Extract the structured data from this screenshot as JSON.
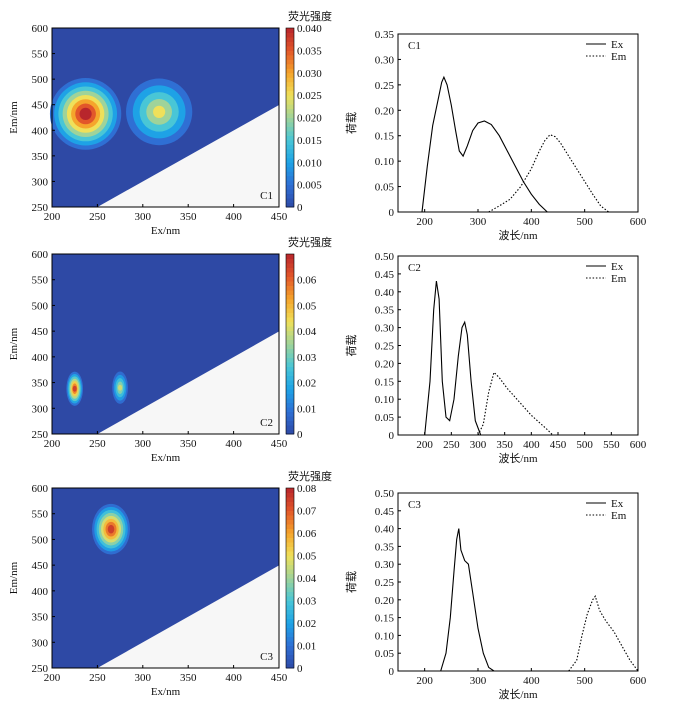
{
  "colorbar_title": "荧光强度",
  "contour_xlabel": "Ex/nm",
  "contour_ylabel": "Em/nm",
  "loading_xlabel": "波长/nm",
  "loading_ylabel": "荷载",
  "colors": {
    "background": "#2e49a5",
    "colormap": [
      "#2e49a5",
      "#2f6fd4",
      "#1ea2e6",
      "#49c6d6",
      "#9fd39a",
      "#efe05a",
      "#f5a52c",
      "#e2572a",
      "#b8262c"
    ],
    "plot_frame": "#000000",
    "masked_region": "#f7f7f7"
  },
  "chart_data": [
    {
      "type": "heatmap",
      "label": "C1",
      "x_range": [
        200,
        450
      ],
      "y_range": [
        250,
        600
      ],
      "x_ticks": [
        200,
        250,
        300,
        350,
        400,
        450
      ],
      "y_ticks": [
        250,
        300,
        350,
        400,
        450,
        500,
        550,
        600
      ],
      "colorbar_max": 0.04,
      "colorbar_ticks": [
        "0",
        "0.005",
        "0.010",
        "0.015",
        "0.020",
        "0.025",
        "0.030",
        "0.035",
        "0.040"
      ],
      "peaks": [
        {
          "ex": 237,
          "em": 432,
          "intensity": 0.04
        },
        {
          "ex": 318,
          "em": 436,
          "intensity": 0.025
        }
      ]
    },
    {
      "type": "line",
      "label": "C1",
      "x_range": [
        150,
        600
      ],
      "y_range": [
        0,
        0.35
      ],
      "x_ticks": [
        200,
        300,
        400,
        500,
        600
      ],
      "y_ticks": [
        "0",
        "0.05",
        "0.10",
        "0.15",
        "0.20",
        "0.25",
        "0.30",
        "0.35"
      ],
      "legend_position": "top-right",
      "series": [
        {
          "name": "Ex",
          "style": "solid",
          "points": [
            [
              195,
              0
            ],
            [
              205,
              0.09
            ],
            [
              215,
              0.17
            ],
            [
              225,
              0.22
            ],
            [
              232,
              0.255
            ],
            [
              236,
              0.265
            ],
            [
              242,
              0.25
            ],
            [
              250,
              0.21
            ],
            [
              258,
              0.16
            ],
            [
              265,
              0.12
            ],
            [
              272,
              0.11
            ],
            [
              280,
              0.13
            ],
            [
              290,
              0.16
            ],
            [
              300,
              0.175
            ],
            [
              312,
              0.179
            ],
            [
              325,
              0.172
            ],
            [
              340,
              0.15
            ],
            [
              355,
              0.12
            ],
            [
              370,
              0.09
            ],
            [
              385,
              0.06
            ],
            [
              400,
              0.035
            ],
            [
              415,
              0.015
            ],
            [
              430,
              0
            ]
          ]
        },
        {
          "name": "Em",
          "style": "dotted",
          "points": [
            [
              320,
              0
            ],
            [
              340,
              0.012
            ],
            [
              360,
              0.025
            ],
            [
              380,
              0.05
            ],
            [
              400,
              0.085
            ],
            [
              415,
              0.12
            ],
            [
              425,
              0.14
            ],
            [
              435,
              0.152
            ],
            [
              445,
              0.148
            ],
            [
              455,
              0.135
            ],
            [
              470,
              0.11
            ],
            [
              485,
              0.085
            ],
            [
              500,
              0.06
            ],
            [
              515,
              0.035
            ],
            [
              530,
              0.012
            ],
            [
              545,
              0
            ]
          ]
        }
      ]
    },
    {
      "type": "heatmap",
      "label": "C2",
      "x_range": [
        200,
        450
      ],
      "y_range": [
        250,
        600
      ],
      "x_ticks": [
        200,
        250,
        300,
        350,
        400,
        450
      ],
      "y_ticks": [
        250,
        300,
        350,
        400,
        450,
        500,
        550,
        600
      ],
      "colorbar_max": 0.07,
      "colorbar_ticks": [
        "0",
        "0.01",
        "0.02",
        "0.03",
        "0.04",
        "0.05",
        "0.06"
      ],
      "peaks": [
        {
          "ex": 225,
          "em": 338,
          "intensity": 0.065
        },
        {
          "ex": 275,
          "em": 340,
          "intensity": 0.04
        }
      ]
    },
    {
      "type": "line",
      "label": "C2",
      "x_range": [
        150,
        600
      ],
      "y_range": [
        0,
        0.5
      ],
      "x_ticks": [
        200,
        250,
        300,
        350,
        400,
        450,
        500,
        550,
        600
      ],
      "y_ticks": [
        "0",
        "0.05",
        "0.10",
        "0.15",
        "0.20",
        "0.25",
        "0.30",
        "0.35",
        "0.40",
        "0.45",
        "0.50"
      ],
      "legend_position": "top-right",
      "series": [
        {
          "name": "Ex",
          "style": "solid",
          "points": [
            [
              200,
              0
            ],
            [
              210,
              0.15
            ],
            [
              217,
              0.35
            ],
            [
              222,
              0.43
            ],
            [
              227,
              0.38
            ],
            [
              233,
              0.15
            ],
            [
              240,
              0.05
            ],
            [
              247,
              0.04
            ],
            [
              255,
              0.1
            ],
            [
              263,
              0.22
            ],
            [
              270,
              0.3
            ],
            [
              275,
              0.315
            ],
            [
              280,
              0.28
            ],
            [
              287,
              0.15
            ],
            [
              295,
              0.04
            ],
            [
              305,
              0
            ]
          ]
        },
        {
          "name": "Em",
          "style": "dotted",
          "points": [
            [
              300,
              0
            ],
            [
              310,
              0.03
            ],
            [
              320,
              0.12
            ],
            [
              330,
              0.175
            ],
            [
              340,
              0.16
            ],
            [
              355,
              0.13
            ],
            [
              370,
              0.105
            ],
            [
              385,
              0.08
            ],
            [
              400,
              0.055
            ],
            [
              415,
              0.035
            ],
            [
              430,
              0.015
            ],
            [
              440,
              0
            ]
          ]
        }
      ]
    },
    {
      "type": "heatmap",
      "label": "C3",
      "x_range": [
        200,
        450
      ],
      "y_range": [
        250,
        600
      ],
      "x_ticks": [
        200,
        250,
        300,
        350,
        400,
        450
      ],
      "y_ticks": [
        250,
        300,
        350,
        400,
        450,
        500,
        550,
        600
      ],
      "colorbar_max": 0.08,
      "colorbar_ticks": [
        "0",
        "0.01",
        "0.02",
        "0.03",
        "0.04",
        "0.05",
        "0.06",
        "0.07",
        "0.08"
      ],
      "peaks": [
        {
          "ex": 265,
          "em": 520,
          "intensity": 0.075
        }
      ]
    },
    {
      "type": "line",
      "label": "C3",
      "x_range": [
        150,
        600
      ],
      "y_range": [
        0,
        0.5
      ],
      "x_ticks": [
        200,
        300,
        400,
        500,
        600
      ],
      "y_ticks": [
        "0",
        "0.05",
        "0.10",
        "0.15",
        "0.20",
        "0.25",
        "0.30",
        "0.35",
        "0.40",
        "0.45",
        "0.50"
      ],
      "legend_position": "top-right",
      "series": [
        {
          "name": "Ex",
          "style": "solid",
          "points": [
            [
              230,
              0
            ],
            [
              240,
              0.05
            ],
            [
              248,
              0.15
            ],
            [
              255,
              0.28
            ],
            [
              260,
              0.37
            ],
            [
              264,
              0.4
            ],
            [
              268,
              0.34
            ],
            [
              275,
              0.31
            ],
            [
              282,
              0.3
            ],
            [
              290,
              0.22
            ],
            [
              300,
              0.12
            ],
            [
              310,
              0.05
            ],
            [
              320,
              0.01
            ],
            [
              330,
              0
            ]
          ]
        },
        {
          "name": "Em",
          "style": "dotted",
          "points": [
            [
              470,
              0
            ],
            [
              485,
              0.03
            ],
            [
              495,
              0.1
            ],
            [
              505,
              0.16
            ],
            [
              515,
              0.2
            ],
            [
              520,
              0.21
            ],
            [
              528,
              0.17
            ],
            [
              540,
              0.14
            ],
            [
              555,
              0.11
            ],
            [
              570,
              0.07
            ],
            [
              585,
              0.03
            ],
            [
              600,
              0
            ]
          ]
        }
      ]
    }
  ]
}
